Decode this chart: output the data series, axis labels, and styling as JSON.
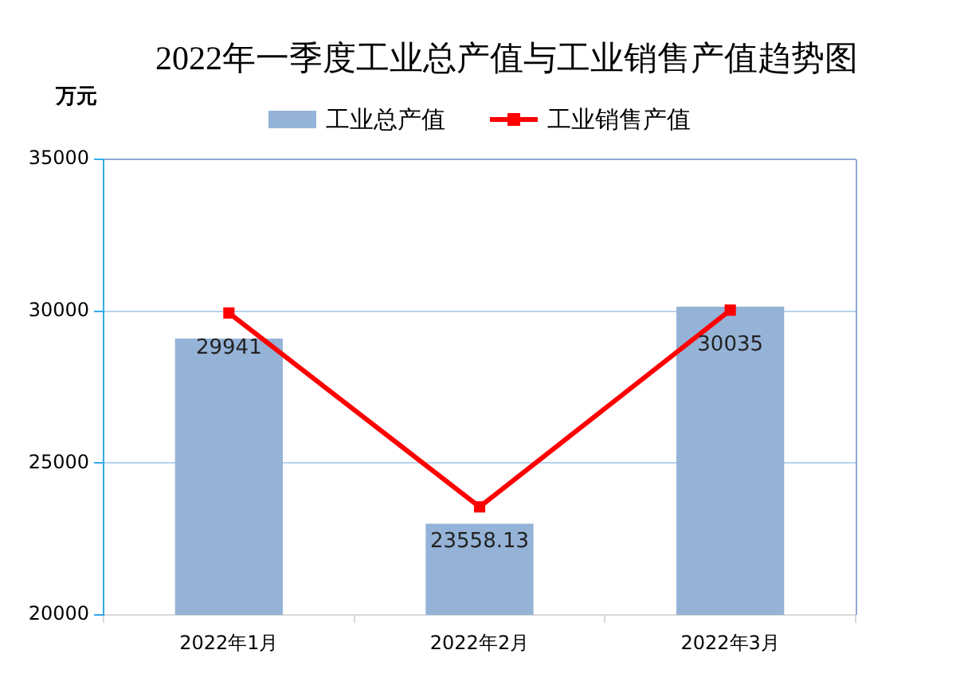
{
  "chart_data": {
    "type": "bar",
    "title": "2022年一季度工业总产值与工业销售产值趋势图",
    "ylabel": "万元",
    "categories": [
      "2022年1月",
      "2022年2月",
      "2022年3月"
    ],
    "series": [
      {
        "name": "工业总产值",
        "color": "#95b3d7",
        "values": [
          29100,
          23000,
          30150
        ]
      },
      {
        "name": "工业销售产值",
        "type": "line",
        "color": "#ff0000",
        "values": [
          29941,
          23558.13,
          30035
        ],
        "value_labels": [
          "29941",
          "23558.13",
          "30035"
        ]
      }
    ],
    "ylim": [
      20000,
      35000
    ],
    "yticks": [
      20000,
      25000,
      30000,
      35000
    ],
    "grid": "y",
    "legend": "top",
    "marker": "square",
    "line_style": "solid"
  }
}
